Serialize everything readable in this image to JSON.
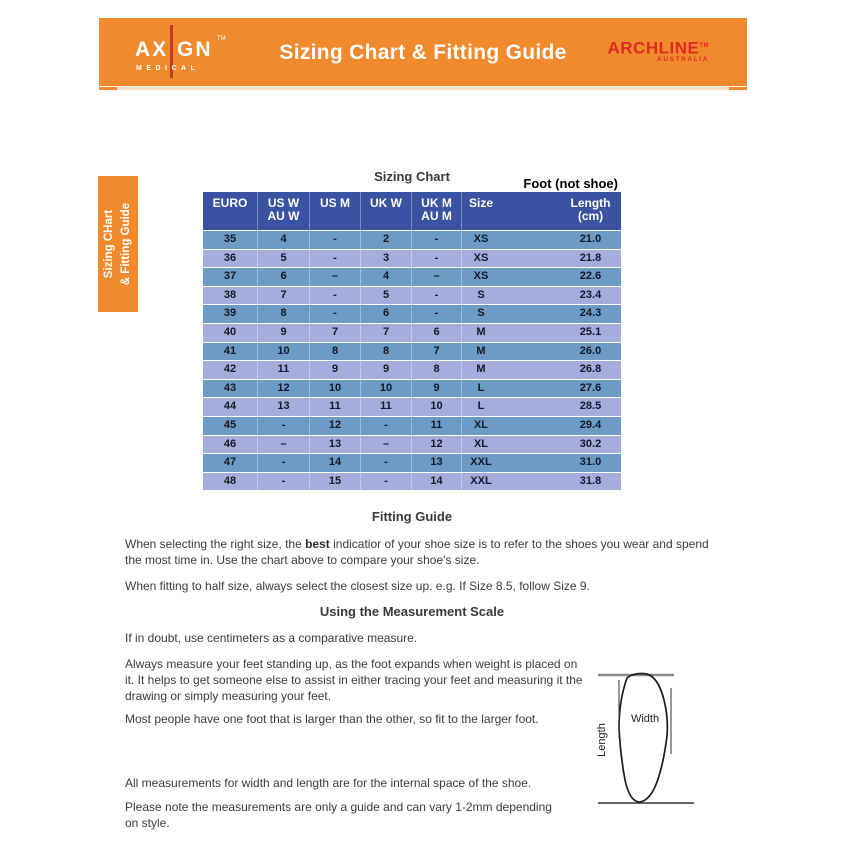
{
  "banner": {
    "bg_color": "#F1892D",
    "axign": {
      "part1": "AX",
      "part2": "GN",
      "tm": "TM",
      "sub": "MEDICAL",
      "accent_color": "#C03A28"
    },
    "title": "Sizing Chart & Fitting Guide",
    "archline": {
      "name": "ARCHLINE",
      "tm": "TM",
      "sub": "AUSTRALIA",
      "color": "#DC2B1E"
    }
  },
  "side_tab": {
    "line1": "Sizing CHart",
    "line2": "& Fitting Guide"
  },
  "sizing_chart": {
    "title": "Sizing Chart",
    "foot_note": "Foot (not shoe)"
  },
  "table": {
    "header": [
      [
        "EURO",
        ""
      ],
      [
        "US W",
        "AU W"
      ],
      [
        "US M",
        ""
      ],
      [
        "UK W",
        ""
      ],
      [
        "UK M",
        "AU M"
      ],
      [
        "Size",
        ""
      ],
      [
        "Length",
        "(cm)"
      ]
    ],
    "rows": [
      [
        "35",
        "4",
        "-",
        "2",
        "-",
        "XS",
        "21.0"
      ],
      [
        "36",
        "5",
        "-",
        "3",
        "-",
        "XS",
        "21.8"
      ],
      [
        "37",
        "6",
        "–",
        "4",
        "–",
        "XS",
        "22.6"
      ],
      [
        "38",
        "7",
        "-",
        "5",
        "-",
        "S",
        "23.4"
      ],
      [
        "39",
        "8",
        "-",
        "6",
        "-",
        "S",
        "24.3"
      ],
      [
        "40",
        "9",
        "7",
        "7",
        "6",
        "M",
        "25.1"
      ],
      [
        "41",
        "10",
        "8",
        "8",
        "7",
        "M",
        "26.0"
      ],
      [
        "42",
        "11",
        "9",
        "9",
        "8",
        "M",
        "26.8"
      ],
      [
        "43",
        "12",
        "10",
        "10",
        "9",
        "L",
        "27.6"
      ],
      [
        "44",
        "13",
        "11",
        "11",
        "10",
        "L",
        "28.5"
      ],
      [
        "45",
        "-",
        "12",
        "-",
        "11",
        "XL",
        "29.4"
      ],
      [
        "46",
        "–",
        "13",
        "–",
        "12",
        "XL",
        "30.2"
      ],
      [
        "47",
        "-",
        "14",
        "-",
        "13",
        "XXL",
        "31.0"
      ],
      [
        "48",
        "-",
        "15",
        "-",
        "14",
        "XXL",
        "31.8"
      ]
    ],
    "colors": {
      "header_bg": "#3A52A2",
      "row_dark": "#6C9BC5",
      "row_light": "#A4ADDB",
      "text": "#121826"
    }
  },
  "fitting_guide": {
    "title": "Fitting Guide",
    "p1_before": "When selecting the right size, the ",
    "p1_bold": "best",
    "p1_after": " indicatior of your shoe size is to refer to the shoes you wear and spend the most time in. Use the chart above to compare your shoe's size.",
    "p2": "When fitting to half size, always select the closest size up. e.g. If Size 8.5, follow Size 9."
  },
  "measurement_scale": {
    "title": "Using the Measurement Scale",
    "p1": "If in doubt, use centimeters as a comparative measure.",
    "p2": "Always measure your feet standing up, as the foot expands when weight is placed on it. It helps to get someone else to assist in either tracing your feet and measuring it the drawing or simply measuring your feet.",
    "p3": "Most people have one foot that is larger than the other, so fit to the larger foot.",
    "p4": "All measurements for width and length are for the internal space of the shoe.",
    "p5": "Please note the measurements are only a guide and can vary 1-2mm depending on style."
  },
  "foot_diagram": {
    "width_label": "Width",
    "length_label": "Length"
  }
}
